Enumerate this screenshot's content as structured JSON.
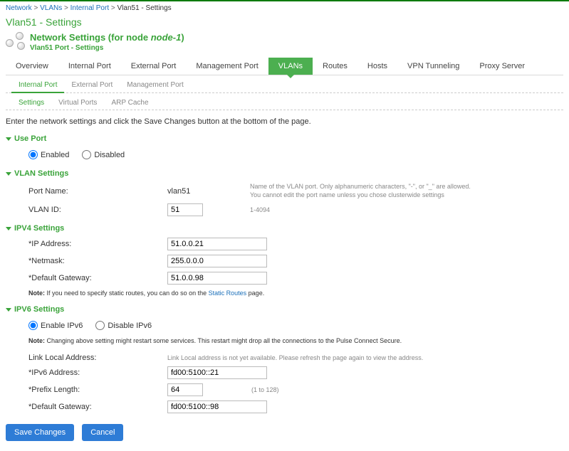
{
  "breadcrumb": {
    "l1": "Network",
    "l2": "VLANs",
    "l3": "Internal Port",
    "cur": "Vlan51 - Settings"
  },
  "page_title": "Vlan51 - Settings",
  "node": {
    "title_prefix": "Network Settings (for node ",
    "title_node": "node-1",
    "title_suffix": ")",
    "sub": "Vlan51 Port - Settings"
  },
  "tabs": [
    "Overview",
    "Internal Port",
    "External Port",
    "Management Port",
    "VLANs",
    "Routes",
    "Hosts",
    "VPN Tunneling",
    "Proxy Server"
  ],
  "tabs_active": 4,
  "subtabs": [
    "Internal Port",
    "External Port",
    "Management Port"
  ],
  "subtabs_active": 0,
  "subtabs2": [
    "Settings",
    "Virtual Ports",
    "ARP Cache"
  ],
  "subtabs2_active": 0,
  "intro": "Enter the network settings and click the Save Changes button at the bottom of the page.",
  "sections": {
    "useport": {
      "title": "Use Port",
      "opt_enabled": "Enabled",
      "opt_disabled": "Disabled"
    },
    "vlan": {
      "title": "VLAN Settings",
      "portname_label": "Port Name:",
      "portname_value": "vlan51",
      "portname_help1": "Name of the VLAN port. Only alphanumeric characters, \"-\", or \"_\" are allowed.",
      "portname_help2": "You cannot edit the port name unless you chose clusterwide settings",
      "vlanid_label": "VLAN ID:",
      "vlanid_value": "51",
      "vlanid_help": "1-4094"
    },
    "ipv4": {
      "title": "IPV4 Settings",
      "ip_label": "*IP Address:",
      "ip_value": "51.0.0.21",
      "nm_label": "*Netmask:",
      "nm_value": "255.0.0.0",
      "gw_label": "*Default Gateway:",
      "gw_value": "51.0.0.98",
      "note_prefix": "Note:",
      "note_text": " If you need to specify static routes, you can do so on the ",
      "note_link": "Static Routes",
      "note_text2": " page."
    },
    "ipv6": {
      "title": "IPV6 Settings",
      "opt_enable": "Enable IPv6",
      "opt_disable": "Disable IPv6",
      "warn_prefix": "Note:",
      "warn_text": " Changing above setting might restart some services. This restart might drop all the connections to the Pulse Connect Secure.",
      "ll_label": "Link Local Address:",
      "ll_help": "Link Local address is not yet available. Please refresh the page again to view the address.",
      "ip_label": "*IPv6 Address:",
      "ip_value": "fd00:5100::21",
      "pl_label": "*Prefix Length:",
      "pl_value": "64",
      "pl_help": "(1 to 128)",
      "gw_label": "*Default Gateway:",
      "gw_value": "fd00:5100::98"
    }
  },
  "buttons": {
    "save": "Save Changes",
    "cancel": "Cancel"
  }
}
